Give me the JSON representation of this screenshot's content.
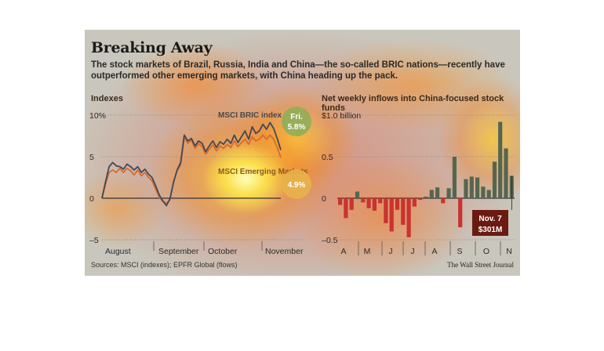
{
  "title": "Breaking Away",
  "subtitle": "The stock markets of Brazil, Russia, India and China—the so-called BRIC nations—recently have outperformed other emerging markets, with China heading up the pack.",
  "source": "Sources: MSCI (indexes); EPFR Global (flows)",
  "credit": "The Wall Street Journal",
  "colors": {
    "bric_line": "#3d4a5a",
    "em_line": "#d96a2a",
    "bar_positive": "#556650",
    "bar_negative": "#c9332f",
    "bric_bubble": "#8fae58",
    "em_bubble": "#e8b24a",
    "callout": "#6b1a12"
  },
  "chart_data": [
    {
      "type": "line",
      "title": "Indexes",
      "y_ticks": [
        "10%",
        "5",
        "0",
        "–5"
      ],
      "ylim": [
        -5,
        10
      ],
      "x_ticks": [
        "August",
        "September",
        "October",
        "November"
      ],
      "series": [
        {
          "name": "MSCI BRIC index",
          "end_label": "Fri.",
          "end_value": "5.8%",
          "values": [
            0,
            2,
            3.8,
            4.3,
            3.9,
            3.8,
            3.5,
            4.1,
            3.8,
            3.4,
            3.8,
            3.1,
            3.5,
            2.9,
            2.5,
            1.5,
            0.4,
            -0.3,
            -0.9,
            -0.1,
            1.9,
            3.4,
            4.3,
            7.6,
            6.9,
            7.2,
            6.3,
            6.9,
            6.6,
            5.6,
            6.3,
            6.9,
            6.1,
            6.8,
            6.5,
            7.1,
            6.6,
            7.6,
            6.7,
            7.4,
            8.1,
            7.1,
            8.6,
            7.8,
            8.1,
            8.9,
            8.3,
            9.1,
            8.4,
            7.2,
            5.8
          ]
        },
        {
          "name": "MSCI Emerging Markets",
          "end_label": "",
          "end_value": "4.9%",
          "values": [
            0,
            1.7,
            3.1,
            3.4,
            3.1,
            3.6,
            3.1,
            3.6,
            3.3,
            2.8,
            3.4,
            2.7,
            3.1,
            2.5,
            2.1,
            1.1,
            0.1,
            -0.4,
            -0.6,
            -0.2,
            2.0,
            3.3,
            4.0,
            7.3,
            6.6,
            7.0,
            6.0,
            6.6,
            6.2,
            5.3,
            5.9,
            6.4,
            5.7,
            6.3,
            6.0,
            6.5,
            6.1,
            6.9,
            6.2,
            6.7,
            7.1,
            6.5,
            7.4,
            6.9,
            7.1,
            7.6,
            7.1,
            7.6,
            7.1,
            6.1,
            4.9
          ]
        }
      ]
    },
    {
      "type": "bar",
      "title": "Net weekly inflows into China-focused stock funds",
      "y_ticks": [
        "$1.0 billion",
        "0.5",
        "0",
        "–0.5"
      ],
      "ylim": [
        -0.5,
        1.0
      ],
      "x_ticks": [
        "A",
        "M",
        "J",
        "J",
        "A",
        "S",
        "O",
        "N"
      ],
      "values": [
        -0.08,
        -0.24,
        -0.14,
        0.08,
        -0.05,
        -0.12,
        -0.15,
        -0.06,
        -0.3,
        -0.4,
        -0.14,
        -0.32,
        -0.47,
        -0.1,
        -0.02,
        0.02,
        0.1,
        0.13,
        -0.06,
        0.12,
        0.5,
        -0.35,
        0.23,
        0.26,
        0.25,
        0.14,
        0.1,
        0.44,
        0.92,
        0.6,
        0.27
      ],
      "callout": {
        "label": "Nov. 7",
        "value": "$301M"
      }
    }
  ]
}
